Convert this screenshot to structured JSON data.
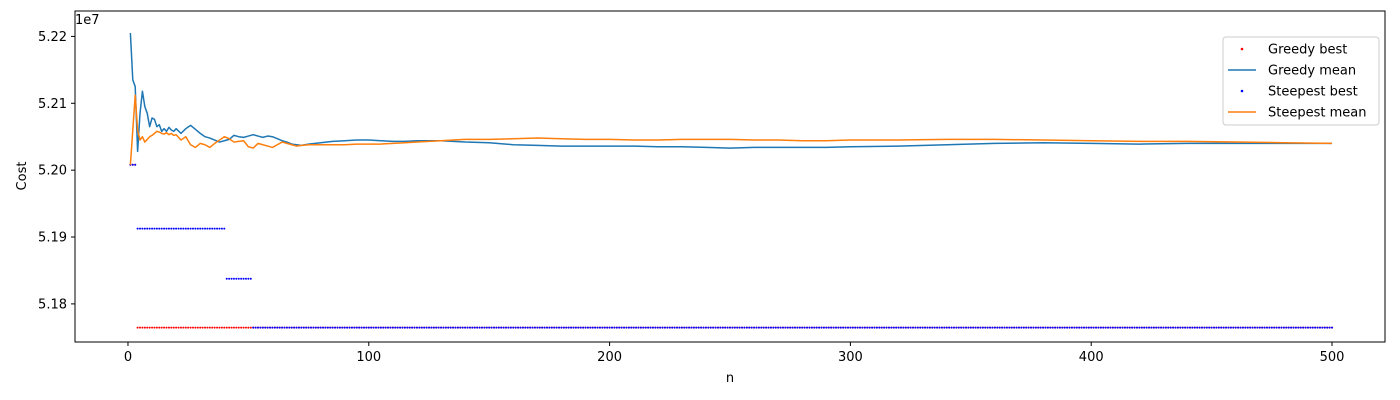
{
  "chart_data": {
    "type": "line",
    "title": "",
    "xlabel": "n",
    "ylabel": "Cost",
    "offset_label": "1e7",
    "xlim": [
      -22,
      522
    ],
    "ylim": [
      5.1743,
      5.2238
    ],
    "x_ticks": [
      0,
      100,
      200,
      300,
      400,
      500
    ],
    "x_tick_labels": [
      "0",
      "100",
      "200",
      "300",
      "400",
      "500"
    ],
    "y_ticks": [
      5.18,
      5.19,
      5.2,
      5.21,
      5.22
    ],
    "y_tick_labels": [
      "5.18",
      "5.19",
      "5.20",
      "5.21",
      "5.22"
    ],
    "grid": false,
    "legend_position": "top-right",
    "series": [
      {
        "name": "Greedy best",
        "kind": "dots",
        "color": "#ff0000",
        "segments": [
          {
            "x_start": 1,
            "x_end": 3,
            "y": 5.2008
          },
          {
            "x_start": 4,
            "x_end": 500,
            "y": 5.17645
          }
        ]
      },
      {
        "name": "Greedy mean",
        "kind": "line",
        "color": "#1f77b4",
        "x": [
          1,
          2,
          3,
          4,
          5,
          6,
          7,
          8,
          9,
          10,
          11,
          12,
          13,
          14,
          15,
          16,
          17,
          18,
          19,
          20,
          22,
          24,
          26,
          28,
          30,
          32,
          34,
          36,
          38,
          40,
          42,
          44,
          46,
          48,
          50,
          52,
          54,
          56,
          58,
          60,
          62,
          64,
          66,
          68,
          70,
          72,
          75,
          80,
          85,
          90,
          95,
          100,
          105,
          110,
          115,
          120,
          125,
          130,
          135,
          140,
          150,
          160,
          170,
          180,
          190,
          200,
          210,
          220,
          230,
          240,
          250,
          260,
          270,
          280,
          290,
          300,
          320,
          340,
          360,
          380,
          400,
          420,
          440,
          460,
          480,
          500
        ],
        "y": [
          5.2205,
          5.2135,
          5.2125,
          5.2028,
          5.2085,
          5.2118,
          5.2095,
          5.2085,
          5.2065,
          5.2078,
          5.2076,
          5.2065,
          5.2068,
          5.2058,
          5.2062,
          5.2058,
          5.2064,
          5.206,
          5.2058,
          5.2062,
          5.2055,
          5.2062,
          5.2067,
          5.2061,
          5.2055,
          5.205,
          5.2048,
          5.2045,
          5.2042,
          5.2044,
          5.2046,
          5.2052,
          5.205,
          5.2049,
          5.2051,
          5.2053,
          5.2051,
          5.2049,
          5.2051,
          5.205,
          5.2047,
          5.2044,
          5.2042,
          5.2039,
          5.2038,
          5.2037,
          5.2039,
          5.2041,
          5.2043,
          5.2044,
          5.2045,
          5.2045,
          5.2044,
          5.2043,
          5.2043,
          5.2044,
          5.2044,
          5.2044,
          5.2043,
          5.2042,
          5.2041,
          5.2038,
          5.2037,
          5.2036,
          5.2036,
          5.2036,
          5.2036,
          5.2035,
          5.2035,
          5.2034,
          5.2033,
          5.2034,
          5.2034,
          5.2034,
          5.2034,
          5.2035,
          5.2036,
          5.2038,
          5.204,
          5.2041,
          5.204,
          5.2039,
          5.204,
          5.204,
          5.204,
          5.204
        ]
      },
      {
        "name": "Steepest best",
        "kind": "dots",
        "color": "#0000ff",
        "segments": [
          {
            "x_start": 1,
            "x_end": 3,
            "y": 5.2008
          },
          {
            "x_start": 4,
            "x_end": 40,
            "y": 5.19125
          },
          {
            "x_start": 41,
            "x_end": 51,
            "y": 5.18375
          },
          {
            "x_start": 52,
            "x_end": 500,
            "y": 5.17645
          }
        ]
      },
      {
        "name": "Steepest mean",
        "kind": "line",
        "color": "#ff7f0e",
        "x": [
          1,
          2,
          3,
          4,
          5,
          6,
          7,
          8,
          9,
          10,
          11,
          12,
          13,
          14,
          15,
          16,
          17,
          18,
          19,
          20,
          22,
          24,
          26,
          28,
          30,
          32,
          34,
          36,
          38,
          40,
          42,
          44,
          46,
          48,
          50,
          52,
          54,
          56,
          58,
          60,
          62,
          64,
          66,
          68,
          70,
          72,
          75,
          80,
          85,
          90,
          95,
          100,
          105,
          110,
          115,
          120,
          125,
          130,
          135,
          140,
          150,
          160,
          170,
          180,
          190,
          200,
          210,
          220,
          230,
          240,
          250,
          260,
          270,
          280,
          290,
          300,
          320,
          340,
          360,
          380,
          400,
          420,
          440,
          460,
          480,
          500
        ],
        "y": [
          5.2008,
          5.206,
          5.2112,
          5.206,
          5.2045,
          5.205,
          5.2042,
          5.2046,
          5.205,
          5.2052,
          5.2055,
          5.2058,
          5.2057,
          5.2055,
          5.2054,
          5.2056,
          5.2053,
          5.2055,
          5.2052,
          5.2053,
          5.2045,
          5.205,
          5.2038,
          5.2034,
          5.204,
          5.2038,
          5.2034,
          5.204,
          5.2045,
          5.205,
          5.2047,
          5.2042,
          5.2043,
          5.2044,
          5.2035,
          5.2033,
          5.204,
          5.2038,
          5.2036,
          5.2034,
          5.2038,
          5.2042,
          5.204,
          5.2038,
          5.2036,
          5.2037,
          5.2038,
          5.2038,
          5.2038,
          5.2038,
          5.2039,
          5.2039,
          5.2039,
          5.204,
          5.2041,
          5.2042,
          5.2043,
          5.2044,
          5.2045,
          5.2046,
          5.2046,
          5.2047,
          5.2048,
          5.2047,
          5.2046,
          5.2046,
          5.2045,
          5.2045,
          5.2046,
          5.2046,
          5.2046,
          5.2045,
          5.2045,
          5.2044,
          5.2044,
          5.2045,
          5.2045,
          5.2046,
          5.2046,
          5.2045,
          5.2044,
          5.2043,
          5.2043,
          5.2042,
          5.2041,
          5.204
        ]
      }
    ]
  }
}
